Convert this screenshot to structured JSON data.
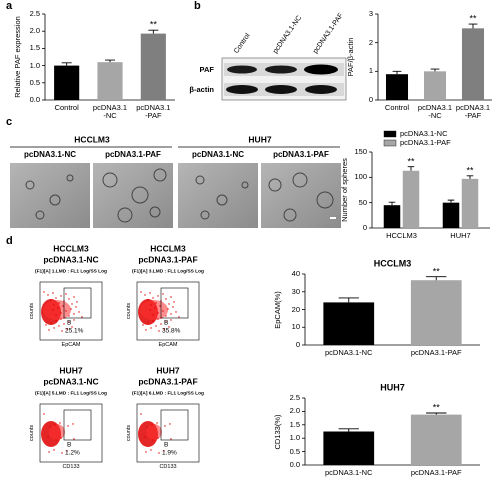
{
  "panel_labels": [
    "a",
    "b",
    "c",
    "d"
  ],
  "western_blot": {
    "lanes": [
      "Control",
      "pcDNA3.1-NC",
      "pcDNA3.1-PAF"
    ],
    "rows": [
      "PAF",
      "β-actin"
    ]
  },
  "microscopy": {
    "groups": [
      {
        "label": "HCCLM3",
        "conditions": [
          "pcDNA3.1-NC",
          "pcDNA3.1-PAF"
        ]
      },
      {
        "label": "HUH7",
        "conditions": [
          "pcDNA3.1-NC",
          "pcDNA3.1-PAF"
        ]
      }
    ]
  },
  "flow_cytometry": {
    "plots": [
      {
        "cell_line": "HCCLM3",
        "condition": "pcDNA3.1-NC",
        "header": "(F1)[A] 1.LMD : FL1 Log/SS Log",
        "gate": "B",
        "percent": "25.1%",
        "y_label": "counts",
        "x_label": "EpCAM"
      },
      {
        "cell_line": "HCCLM3",
        "condition": "pcDNA3.1-PAF",
        "header": "(F1)[A] 3.LMD : FL1 Log/SS Log",
        "gate": "B",
        "percent": "35.8%",
        "y_label": "counts",
        "x_label": "EpCAM"
      },
      {
        "cell_line": "HUH7",
        "condition": "pcDNA3.1-NC",
        "header": "(F1)[A] 5.LMD : FL1 Log/SS Log",
        "gate": "B",
        "percent": "1.2%",
        "y_label": "counts",
        "x_label": "CD133"
      },
      {
        "cell_line": "HUH7",
        "condition": "pcDNA3.1-PAF",
        "header": "(F1)[A] 6.LMD : FL1 Log/SS Log",
        "gate": "B",
        "percent": "1.9%",
        "y_label": "counts",
        "x_label": "CD133"
      }
    ]
  },
  "chart_data": [
    {
      "type": "bar",
      "y_label": "Relative PAF expression",
      "categories": [
        "Control",
        "pcDNA3.1\n-NC",
        "pcDNA3.1\n-PAF"
      ],
      "values": [
        1.0,
        1.1,
        1.93
      ],
      "errors": [
        0.08,
        0.06,
        0.1
      ],
      "colors": [
        "#000000",
        "#a6a6a6",
        "#7f7f7f"
      ],
      "significance": [
        null,
        null,
        "**"
      ],
      "ylim": [
        0,
        2.5
      ],
      "yticks": [
        {
          "value": 0,
          "label": "0.0"
        },
        {
          "value": 0.5,
          "label": "0.5"
        },
        {
          "value": 1,
          "label": "1.0"
        },
        {
          "value": 1.5,
          "label": "1.5"
        },
        {
          "value": 2,
          "label": "2.0"
        },
        {
          "value": 2.5,
          "label": "2.5"
        }
      ]
    },
    {
      "type": "bar",
      "y_label": "PAF/β-actin",
      "categories": [
        "Control",
        "pcDNA3.1\n-NC",
        "pcDNA3.1\n-PAF"
      ],
      "values": [
        0.9,
        1.0,
        2.5
      ],
      "errors": [
        0.1,
        0.08,
        0.15
      ],
      "colors": [
        "#000000",
        "#a6a6a6",
        "#7f7f7f"
      ],
      "significance": [
        null,
        null,
        "**"
      ],
      "ylim": [
        0,
        3
      ],
      "yticks": [
        0,
        1,
        2,
        3
      ]
    },
    {
      "type": "bar",
      "y_label": "Number of spheres",
      "categories": [
        "HCCLM3",
        "HUH7"
      ],
      "series": [
        {
          "name": "pcDNA3.1-NC",
          "color": "#000000",
          "values": [
            45,
            50
          ],
          "errors": [
            6,
            5
          ],
          "significance": [
            null,
            null
          ]
        },
        {
          "name": "pcDNA3.1-PAF",
          "color": "#a6a6a6",
          "values": [
            113,
            97
          ],
          "errors": [
            8,
            6
          ],
          "significance": [
            "**",
            "**"
          ]
        }
      ],
      "ylim": [
        0,
        150
      ],
      "yticks": [
        0,
        50,
        100,
        150
      ]
    },
    {
      "type": "bar",
      "title": "HCCLM3",
      "y_label": "EpCAM(%)",
      "categories": [
        "pcDNA3.1-NC",
        "pcDNA3.1-PAF"
      ],
      "values": [
        24,
        36.5
      ],
      "errors": [
        2.5,
        2
      ],
      "colors": [
        "#000000",
        "#a6a6a6"
      ],
      "significance": [
        null,
        "**"
      ],
      "ylim": [
        0,
        40
      ],
      "yticks": [
        0,
        10,
        20,
        30,
        40
      ]
    },
    {
      "type": "bar",
      "title": "HUH7",
      "y_label": "CD133(%)",
      "categories": [
        "pcDNA3.1-NC",
        "pcDNA3.1-PAF"
      ],
      "values": [
        1.25,
        1.88
      ],
      "errors": [
        0.1,
        0.06
      ],
      "colors": [
        "#000000",
        "#a6a6a6"
      ],
      "significance": [
        null,
        "**"
      ],
      "ylim": [
        0,
        2.5
      ],
      "yticks": [
        {
          "value": 0,
          "label": "0.0"
        },
        {
          "value": 0.5,
          "label": "0.5"
        },
        {
          "value": 1,
          "label": "1.0"
        },
        {
          "value": 1.5,
          "label": "1.5"
        },
        {
          "value": 2,
          "label": "2.0"
        },
        {
          "value": 2.5,
          "label": "2.5"
        }
      ]
    }
  ]
}
